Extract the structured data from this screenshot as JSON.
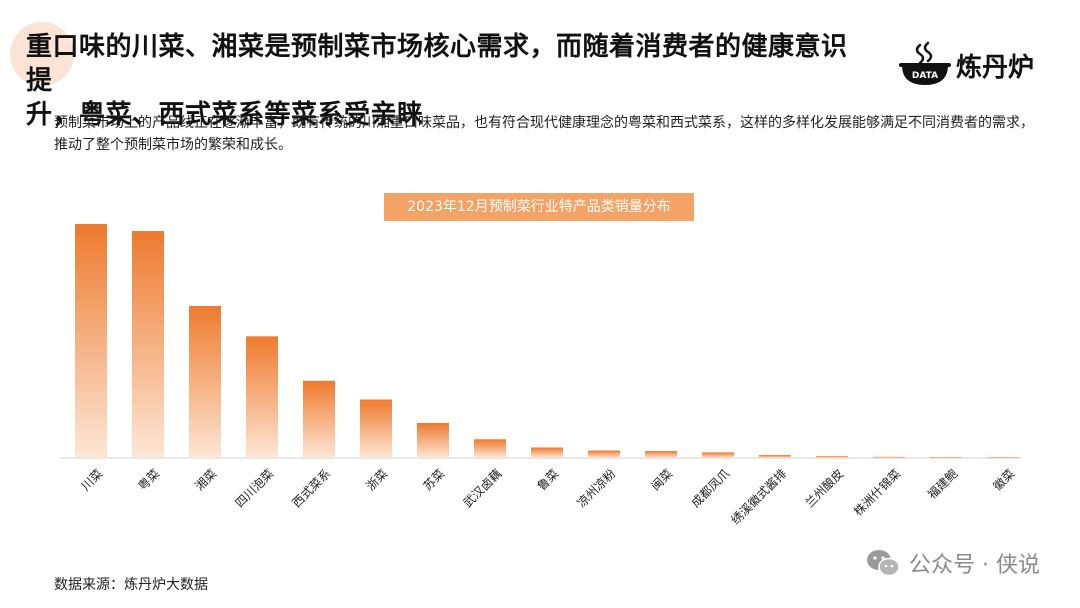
{
  "header": {
    "title_line1": "重口味的川菜、湘菜是预制菜市场核心需求，而随着消费者的健康意识提",
    "title_line2": "升，粤菜、西式菜系等菜系受亲睐",
    "logo_badge": "DATA",
    "logo_text": "炼丹炉"
  },
  "description": "预制菜市场上的产品线正在逐渐丰富，既有传统的川湘重口味菜品，也有符合现代健康理念的粤菜和西式菜系，这样的多样化发展能够满足不同消费者的需求，推动了整个预制菜市场的繁荣和成长。",
  "chart_data": {
    "type": "bar",
    "title": "2023年12月预制菜行业特产品类销量分布",
    "categories": [
      "川菜",
      "粤菜",
      "湘菜",
      "四川泡菜",
      "西式菜系",
      "浙菜",
      "苏菜",
      "武汉卤藕",
      "鲁菜",
      "凉州凉粉",
      "闽菜",
      "成都凤爪",
      "绣溪徽式酱排",
      "兰州酿皮",
      "株洲什锦菜",
      "福建鲍",
      "徽菜"
    ],
    "values": [
      100,
      97,
      65,
      52,
      33,
      25,
      15,
      8,
      4.5,
      3.2,
      3,
      2.4,
      1.3,
      0.8,
      0.5,
      0.4,
      0.3
    ],
    "ylim": [
      0,
      100
    ],
    "grid": false,
    "legend": "none",
    "bar_color_top": "#ee7a2e",
    "bar_color_bottom": "#fde7d6"
  },
  "footer": {
    "source": "数据来源：炼丹炉大数据",
    "watermark": "公众号 · 侠说"
  }
}
